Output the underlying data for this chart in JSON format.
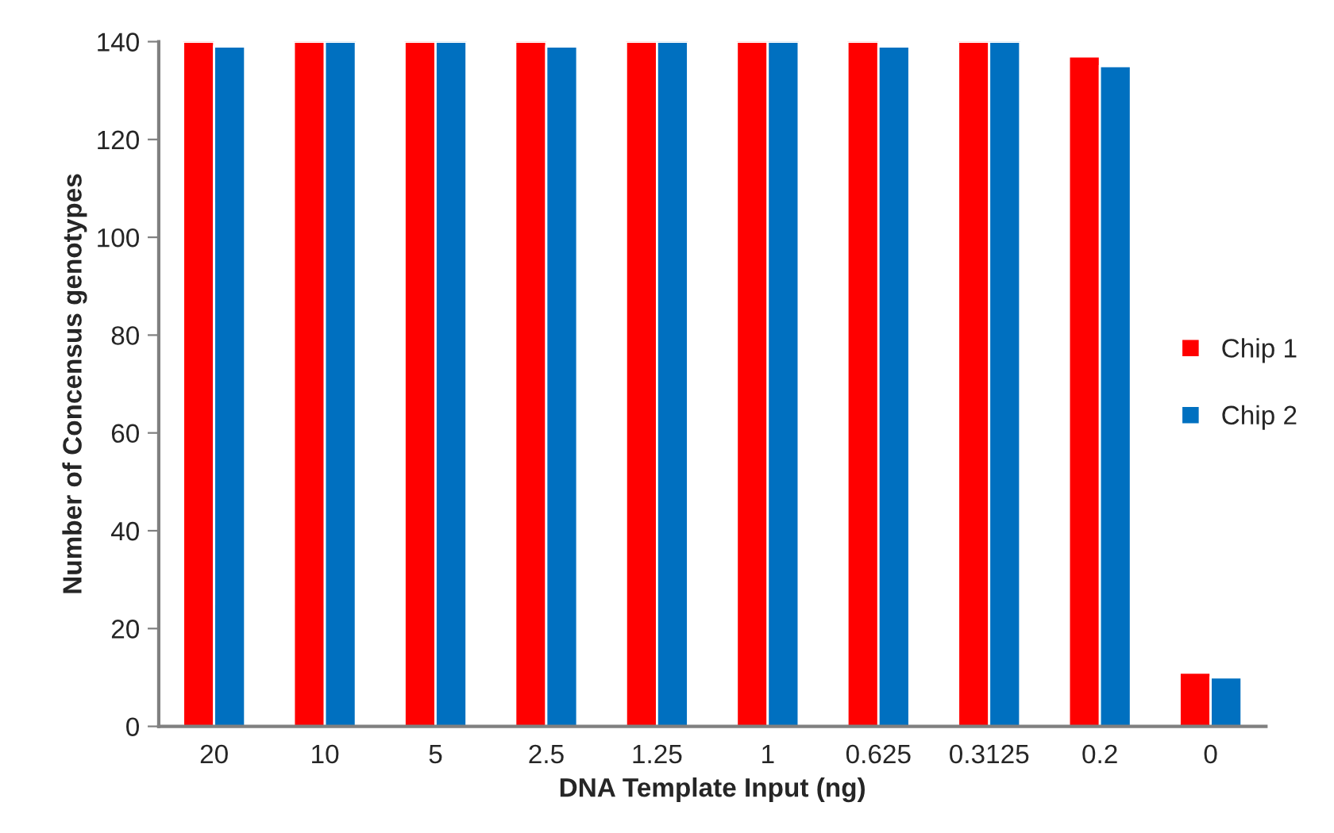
{
  "chart_data": {
    "type": "bar",
    "xlabel": "DNA Template Input (ng)",
    "ylabel": "Number of Concensus genotypes",
    "categories": [
      "20",
      "10",
      "5",
      "2.5",
      "1.25",
      "1",
      "0.625",
      "0.3125",
      "0.2",
      "0"
    ],
    "series": [
      {
        "name": "Chip 1",
        "color": "#ff0000",
        "values": [
          140,
          140,
          140,
          140,
          140,
          140,
          140,
          140,
          137,
          11
        ]
      },
      {
        "name": "Chip 2",
        "color": "#0070c0",
        "values": [
          139,
          140,
          140,
          139,
          140,
          140,
          139,
          140,
          135,
          10
        ]
      }
    ],
    "ylim": [
      0,
      140
    ],
    "yticks": [
      0,
      20,
      40,
      60,
      80,
      100,
      120,
      140
    ],
    "grid": false,
    "legend": "right"
  }
}
